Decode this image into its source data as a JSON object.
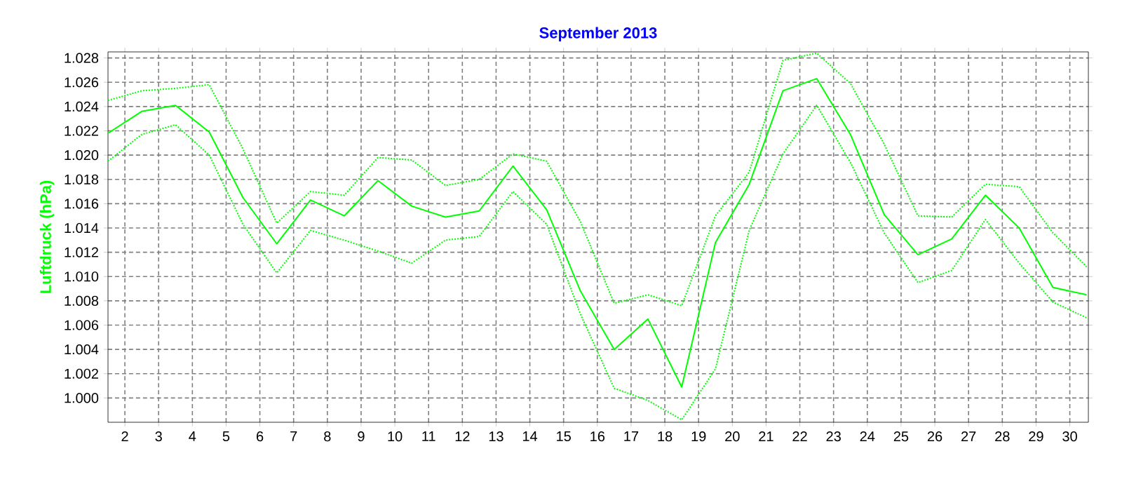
{
  "chart_data": {
    "type": "line",
    "title": "September 2013",
    "ylabel": "Luftdruck (hPa)",
    "x": [
      1.5,
      2.5,
      3.5,
      4.5,
      5.5,
      6.5,
      7.5,
      8.5,
      9.5,
      10.5,
      11.5,
      12.5,
      13.5,
      14.5,
      15.5,
      16.5,
      17.5,
      18.5,
      19.5,
      20.5,
      21.5,
      22.5,
      23.5,
      24.5,
      25.5,
      26.5,
      27.5,
      28.5,
      29.5,
      30.5
    ],
    "series": [
      {
        "color": "#00ff00",
        "line_style": "dotted",
        "values": [
          1024.5,
          1025.3,
          1025.5,
          1025.8,
          1020.5,
          1014.4,
          1017.0,
          1016.7,
          1019.8,
          1019.6,
          1017.5,
          1018.0,
          1020.1,
          1019.5,
          1014.5,
          1007.8,
          1008.5,
          1007.6,
          1015.0,
          1018.6,
          1027.8,
          1028.4,
          1025.9,
          1020.9,
          1015.0,
          1014.9,
          1017.6,
          1017.4,
          1013.6,
          1010.8
        ]
      },
      {
        "color": "#00ff00",
        "line_style": "solid",
        "values": [
          1021.8,
          1023.6,
          1024.1,
          1021.9,
          1016.5,
          1012.7,
          1016.3,
          1015.0,
          1017.9,
          1015.8,
          1014.9,
          1015.4,
          1019.1,
          1015.5,
          1008.8,
          1004.0,
          1006.5,
          1000.9,
          1012.8,
          1017.6,
          1025.3,
          1026.3,
          1021.7,
          1015.1,
          1011.8,
          1013.1,
          1016.7,
          1014.0,
          1009.1,
          1008.5
        ]
      },
      {
        "color": "#00ff00",
        "line_style": "dotted",
        "values": [
          1019.5,
          1021.7,
          1022.5,
          1020.0,
          1014.3,
          1010.3,
          1013.8,
          1013.0,
          1012.1,
          1011.1,
          1013.0,
          1013.3,
          1017.0,
          1014.3,
          1006.9,
          1000.8,
          999.8,
          998.2,
          1002.4,
          1013.8,
          1020.1,
          1024.1,
          1019.4,
          1013.6,
          1009.5,
          1010.5,
          1014.7,
          1011.1,
          1007.9,
          1006.6
        ]
      }
    ],
    "xlim": [
      1.5,
      30.55
    ],
    "xticks": [
      2,
      3,
      4,
      5,
      6,
      7,
      8,
      9,
      10,
      11,
      12,
      13,
      14,
      15,
      16,
      17,
      18,
      19,
      20,
      21,
      22,
      23,
      24,
      25,
      26,
      27,
      28,
      29,
      30
    ],
    "ylim": [
      998,
      1028.5
    ],
    "yticks": [
      {
        "value": 1000,
        "label": "1.000"
      },
      {
        "value": 1002,
        "label": "1.002"
      },
      {
        "value": 1004,
        "label": "1.004"
      },
      {
        "value": 1006,
        "label": "1.006"
      },
      {
        "value": 1008,
        "label": "1.008"
      },
      {
        "value": 1010,
        "label": "1.010"
      },
      {
        "value": 1012,
        "label": "1.012"
      },
      {
        "value": 1014,
        "label": "1.014"
      },
      {
        "value": 1016,
        "label": "1.016"
      },
      {
        "value": 1018,
        "label": "1.018"
      },
      {
        "value": 1020,
        "label": "1.020"
      },
      {
        "value": 1022,
        "label": "1.022"
      },
      {
        "value": 1024,
        "label": "1.024"
      },
      {
        "value": 1026,
        "label": "1.026"
      },
      {
        "value": 1028,
        "label": "1.028"
      }
    ],
    "grid": true
  }
}
